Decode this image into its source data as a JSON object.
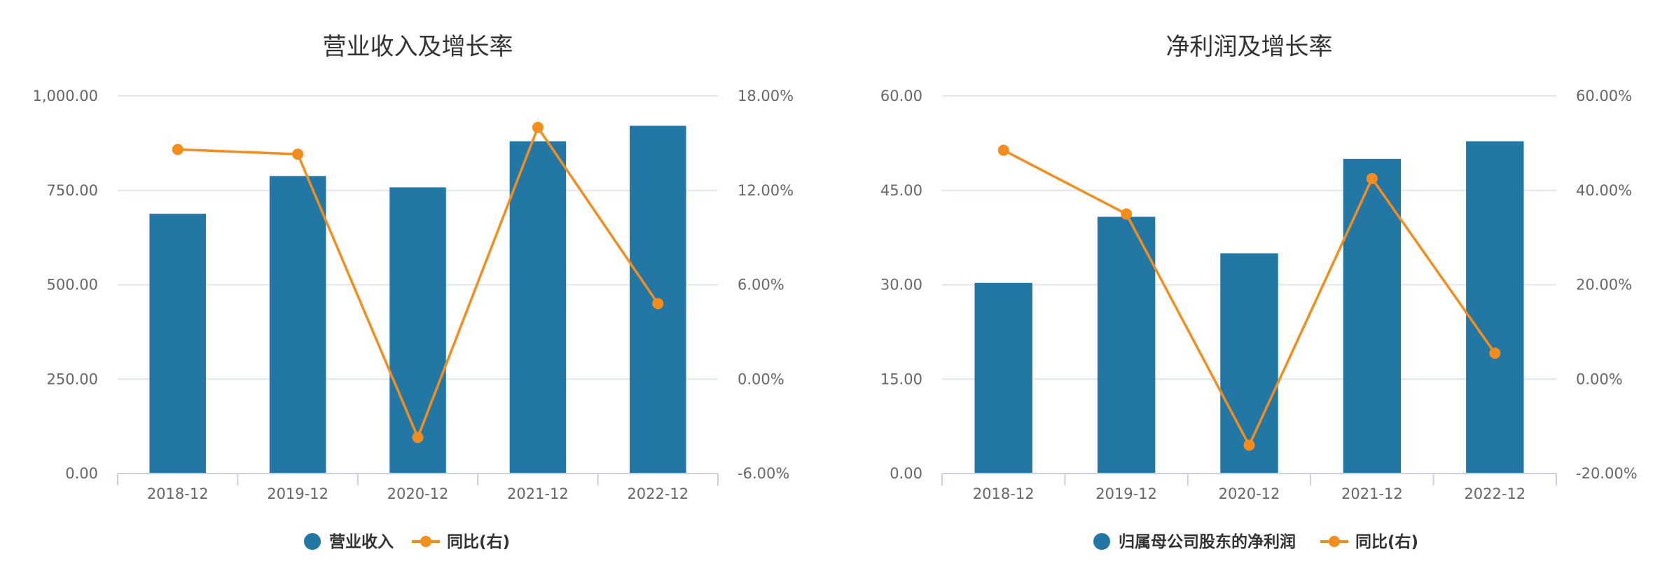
{
  "chart_data": [
    {
      "type": "bar",
      "title": "营业收入及增长率",
      "categories": [
        "2018-12",
        "2019-12",
        "2020-12",
        "2021-12",
        "2022-12"
      ],
      "series": [
        {
          "name": "营业收入",
          "type": "bar",
          "axis": "left",
          "values": [
            688,
            788,
            758,
            880,
            921
          ]
        },
        {
          "name": "同比(右)",
          "type": "line",
          "axis": "right",
          "values": [
            14.6,
            14.3,
            -3.7,
            16.0,
            4.8
          ]
        }
      ],
      "y_left": {
        "min": 0,
        "max": 1000,
        "ticks": [
          "0.00",
          "250.00",
          "500.00",
          "750.00",
          "1,000.00"
        ]
      },
      "y_right": {
        "min": -6,
        "max": 18,
        "ticks": [
          "-6.00%",
          "0.00%",
          "6.00%",
          "12.00%",
          "18.00%"
        ]
      },
      "grid": true,
      "legend_position": "bottom-center"
    },
    {
      "type": "bar",
      "title": "净利润及增长率",
      "categories": [
        "2018-12",
        "2019-12",
        "2020-12",
        "2021-12",
        "2022-12"
      ],
      "series": [
        {
          "name": "归属母公司股东的净利润",
          "type": "bar",
          "axis": "left",
          "values": [
            30.3,
            40.8,
            35.0,
            50.0,
            52.8
          ]
        },
        {
          "name": "同比(右)",
          "type": "line",
          "axis": "right",
          "values": [
            48.5,
            35.0,
            -14.0,
            42.5,
            5.5
          ]
        }
      ],
      "y_left": {
        "min": 0,
        "max": 60,
        "ticks": [
          "0.00",
          "15.00",
          "30.00",
          "45.00",
          "60.00"
        ]
      },
      "y_right": {
        "min": -20,
        "max": 60,
        "ticks": [
          "-20.00%",
          "0.00%",
          "20.00%",
          "40.00%",
          "60.00%"
        ]
      },
      "grid": true,
      "legend_position": "bottom-center"
    }
  ],
  "colors": {
    "bar": "#2277a4",
    "line": "#f28d1e",
    "grid": "#dfe6ee",
    "axis": "#c6d2e4",
    "tick_text": "#666666",
    "title": "#333333",
    "legend_text": "#333333"
  }
}
